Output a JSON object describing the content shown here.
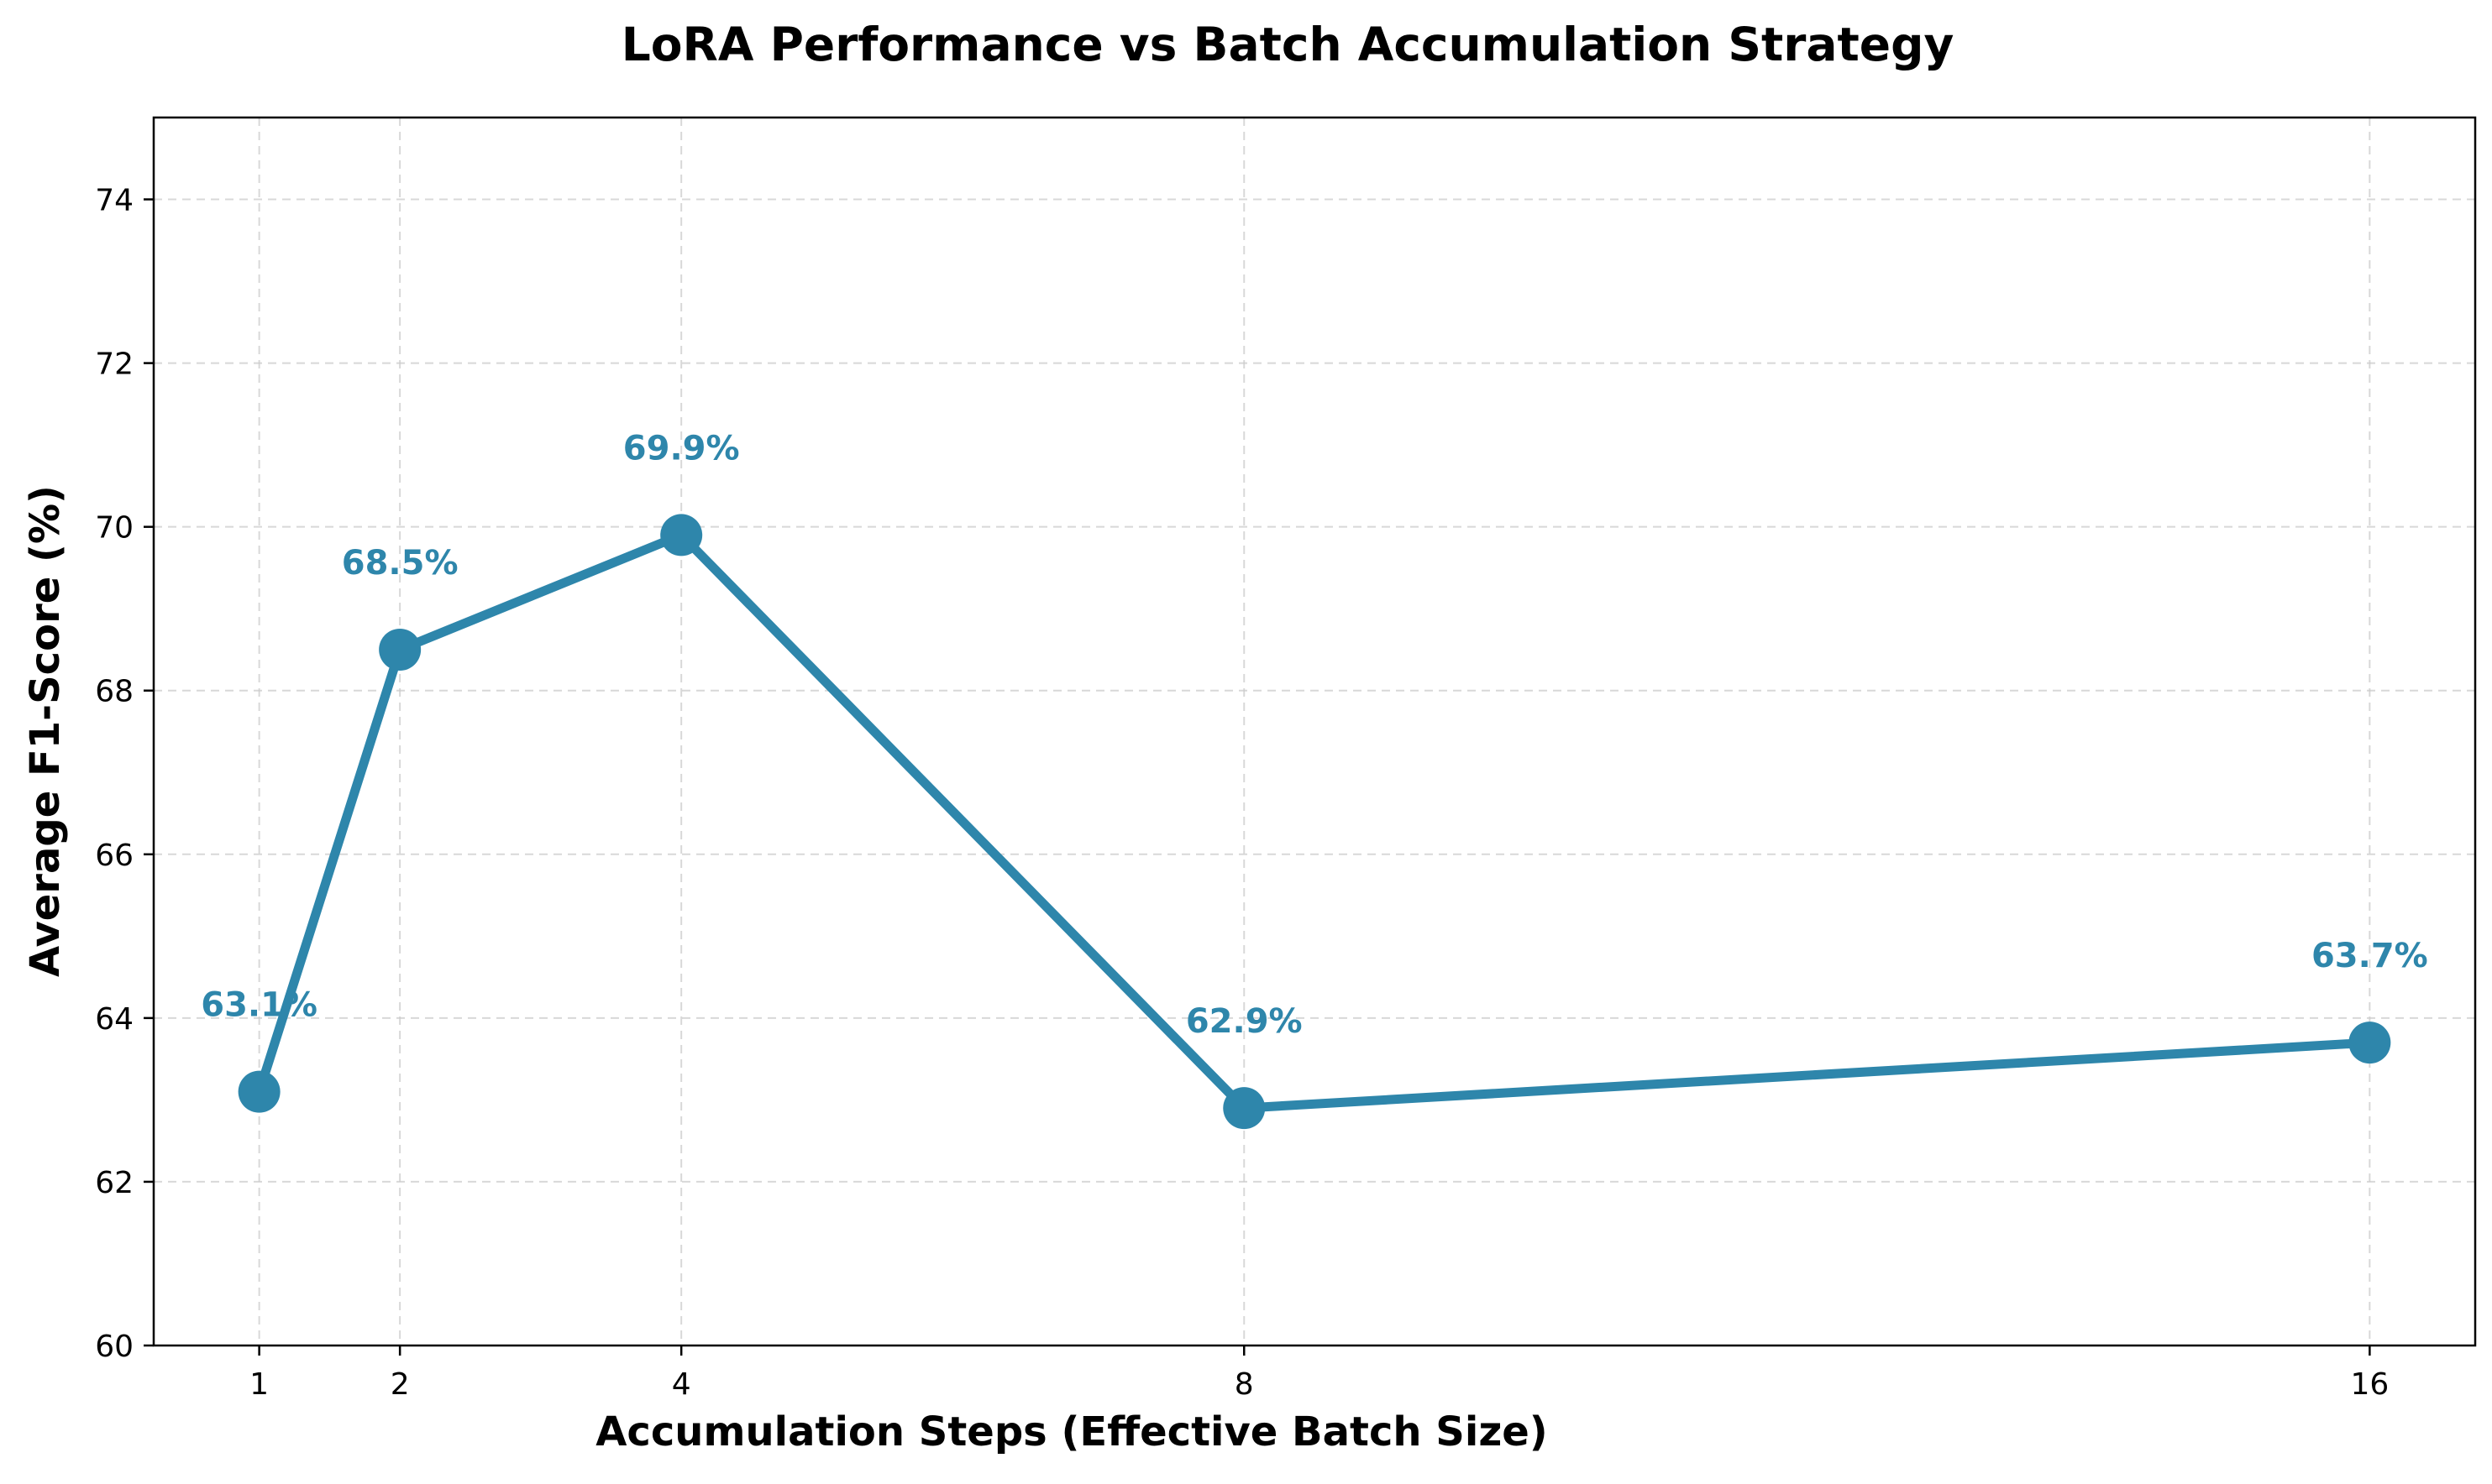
{
  "chart_data": {
    "type": "line",
    "title": "LoRA Performance vs Batch Accumulation Strategy",
    "xlabel": "Accumulation Steps (Effective Batch Size)",
    "ylabel": "Average F1-Score (%)",
    "x": [
      1,
      2,
      4,
      8,
      16
    ],
    "x_ticks": [
      "1",
      "2",
      "4",
      "8",
      "16"
    ],
    "xlim": [
      0.25,
      16.75
    ],
    "ylim": [
      60,
      75
    ],
    "y_ticks": [
      60,
      62,
      64,
      66,
      68,
      70,
      72,
      74
    ],
    "grid": true,
    "series": [
      {
        "values": [
          63.1,
          68.5,
          69.9,
          62.9,
          63.7
        ],
        "labels": [
          "63.1%",
          "68.5%",
          "69.9%",
          "62.9%",
          "63.7%"
        ],
        "color": "#2e86ab",
        "marker": "circle"
      }
    ]
  }
}
